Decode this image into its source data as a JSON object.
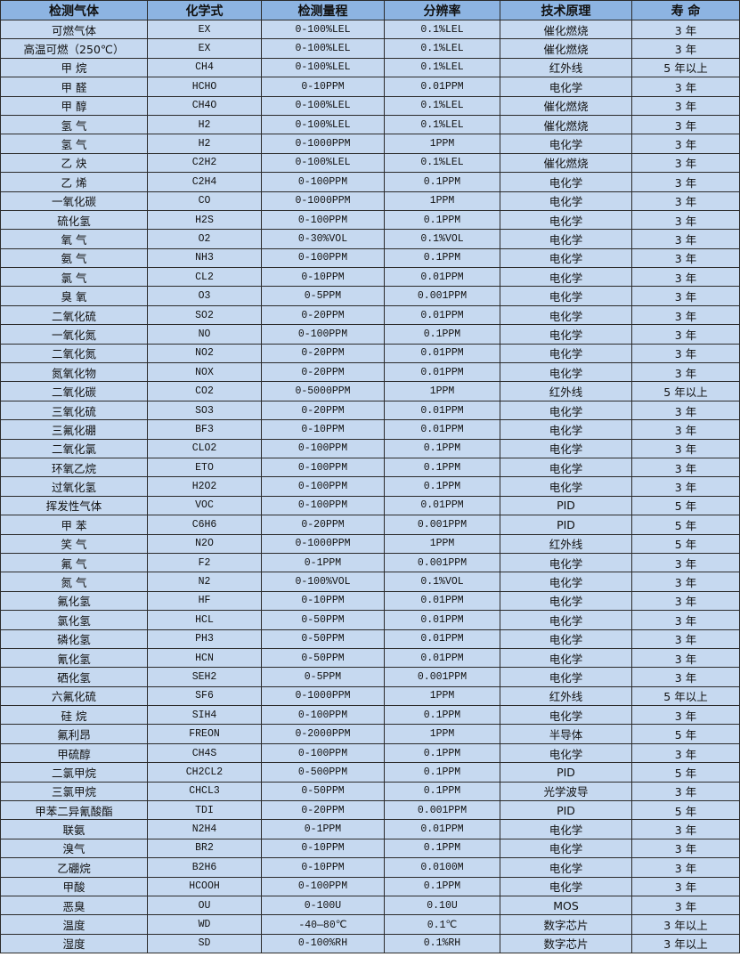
{
  "table": {
    "headers": [
      "检测气体",
      "化学式",
      "检测量程",
      "分辨率",
      "技术原理",
      "寿 命"
    ],
    "rows": [
      [
        "可燃气体",
        "EX",
        "0-100%LEL",
        "0.1%LEL",
        "催化燃烧",
        "3 年"
      ],
      [
        "高温可燃（250℃）",
        "EX",
        "0-100%LEL",
        "0.1%LEL",
        "催化燃烧",
        "3 年"
      ],
      [
        "甲 烷",
        "CH4",
        "0-100%LEL",
        "0.1%LEL",
        "红外线",
        "5 年以上"
      ],
      [
        "甲 醛",
        "HCHO",
        "0-10PPM",
        "0.01PPM",
        "电化学",
        "3 年"
      ],
      [
        "甲 醇",
        "CH4O",
        "0-100%LEL",
        "0.1%LEL",
        "催化燃烧",
        "3 年"
      ],
      [
        "氢 气",
        "H2",
        "0-100%LEL",
        "0.1%LEL",
        "催化燃烧",
        "3 年"
      ],
      [
        "氢 气",
        "H2",
        "0-1000PPM",
        "1PPM",
        "电化学",
        "3 年"
      ],
      [
        "乙 炔",
        "C2H2",
        "0-100%LEL",
        "0.1%LEL",
        "催化燃烧",
        "3 年"
      ],
      [
        "乙 烯",
        "C2H4",
        "0-100PPM",
        "0.1PPM",
        "电化学",
        "3 年"
      ],
      [
        "一氧化碳",
        "CO",
        "0-1000PPM",
        "1PPM",
        "电化学",
        "3 年"
      ],
      [
        "硫化氢",
        "H2S",
        "0-100PPM",
        "0.1PPM",
        "电化学",
        "3 年"
      ],
      [
        "氧 气",
        "O2",
        "0-30%VOL",
        "0.1%VOL",
        "电化学",
        "3 年"
      ],
      [
        "氨 气",
        "NH3",
        "0-100PPM",
        "0.1PPM",
        "电化学",
        "3 年"
      ],
      [
        "氯 气",
        "CL2",
        "0-10PPM",
        "0.01PPM",
        "电化学",
        "3 年"
      ],
      [
        "臭 氧",
        "O3",
        "0-5PPM",
        "0.001PPM",
        "电化学",
        "3 年"
      ],
      [
        "二氧化硫",
        "SO2",
        "0-20PPM",
        "0.01PPM",
        "电化学",
        "3 年"
      ],
      [
        "一氧化氮",
        "NO",
        "0-100PPM",
        "0.1PPM",
        "电化学",
        "3 年"
      ],
      [
        "二氧化氮",
        "NO2",
        "0-20PPM",
        "0.01PPM",
        "电化学",
        "3 年"
      ],
      [
        "氮氧化物",
        "NOX",
        "0-20PPM",
        "0.01PPM",
        "电化学",
        "3 年"
      ],
      [
        "二氧化碳",
        "CO2",
        "0-5000PPM",
        "1PPM",
        "红外线",
        "5 年以上"
      ],
      [
        "三氧化硫",
        "SO3",
        "0-20PPM",
        "0.01PPM",
        "电化学",
        "3 年"
      ],
      [
        "三氟化硼",
        "BF3",
        "0-10PPM",
        "0.01PPM",
        "电化学",
        "3 年"
      ],
      [
        "二氧化氯",
        "CLO2",
        "0-100PPM",
        "0.1PPM",
        "电化学",
        "3 年"
      ],
      [
        "环氧乙烷",
        "ETO",
        "0-100PPM",
        "0.1PPM",
        "电化学",
        "3 年"
      ],
      [
        "过氧化氢",
        "H2O2",
        "0-100PPM",
        "0.1PPM",
        "电化学",
        "3 年"
      ],
      [
        "挥发性气体",
        "VOC",
        "0-100PPM",
        "0.01PPM",
        "PID",
        "5 年"
      ],
      [
        "甲 苯",
        "C6H6",
        "0-20PPM",
        "0.001PPM",
        "PID",
        "5 年"
      ],
      [
        "笑 气",
        "N2O",
        "0-1000PPM",
        "1PPM",
        "红外线",
        "5 年"
      ],
      [
        "氟 气",
        "F2",
        "0-1PPM",
        "0.001PPM",
        "电化学",
        "3 年"
      ],
      [
        "氮 气",
        "N2",
        "0-100%VOL",
        "0.1%VOL",
        "电化学",
        "3 年"
      ],
      [
        "氟化氢",
        "HF",
        "0-10PPM",
        "0.01PPM",
        "电化学",
        "3 年"
      ],
      [
        "氯化氢",
        "HCL",
        "0-50PPM",
        "0.01PPM",
        "电化学",
        "3 年"
      ],
      [
        "磷化氢",
        "PH3",
        "0-50PPM",
        "0.01PPM",
        "电化学",
        "3 年"
      ],
      [
        "氰化氢",
        "HCN",
        "0-50PPM",
        "0.01PPM",
        "电化学",
        "3 年"
      ],
      [
        "硒化氢",
        "SEH2",
        "0-5PPM",
        "0.001PPM",
        "电化学",
        "3 年"
      ],
      [
        "六氟化硫",
        "SF6",
        "0-1000PPM",
        "1PPM",
        "红外线",
        "5 年以上"
      ],
      [
        "硅 烷",
        "SIH4",
        "0-100PPM",
        "0.1PPM",
        "电化学",
        "3 年"
      ],
      [
        "氟利昂",
        "FREON",
        "0-2000PPM",
        "1PPM",
        "半导体",
        "5 年"
      ],
      [
        "甲硫醇",
        "CH4S",
        "0-100PPM",
        "0.1PPM",
        "电化学",
        "3 年"
      ],
      [
        "二氯甲烷",
        "CH2CL2",
        "0-500PPM",
        "0.1PPM",
        "PID",
        "5 年"
      ],
      [
        "三氯甲烷",
        "CHCL3",
        "0-50PPM",
        "0.1PPM",
        "光学波导",
        "3 年"
      ],
      [
        "甲苯二异氰酸酯",
        "TDI",
        "0-20PPM",
        "0.001PPM",
        "PID",
        "5 年"
      ],
      [
        "联氨",
        "N2H4",
        "0-1PPM",
        "0.01PPM",
        "电化学",
        "3 年"
      ],
      [
        "溴气",
        "BR2",
        "0-10PPM",
        "0.1PPM",
        "电化学",
        "3 年"
      ],
      [
        "乙硼烷",
        "B2H6",
        "0-10PPM",
        "0.0100M",
        "电化学",
        "3 年"
      ],
      [
        "甲酸",
        "HCOOH",
        "0-100PPM",
        "0.1PPM",
        "电化学",
        "3 年"
      ],
      [
        "恶臭",
        "OU",
        "0-100U",
        "0.10U",
        "MOS",
        "3 年"
      ],
      [
        "温度",
        "WD",
        "-40—80℃",
        "0.1℃",
        "数字芯片",
        "3 年以上"
      ],
      [
        "湿度",
        "SD",
        "0-100%RH",
        "0.1%RH",
        "数字芯片",
        "3 年以上"
      ]
    ]
  },
  "colors": {
    "header_bg": "#8db4e2",
    "row_bg": "#c6d9f0",
    "border": "#2b2b2b"
  }
}
